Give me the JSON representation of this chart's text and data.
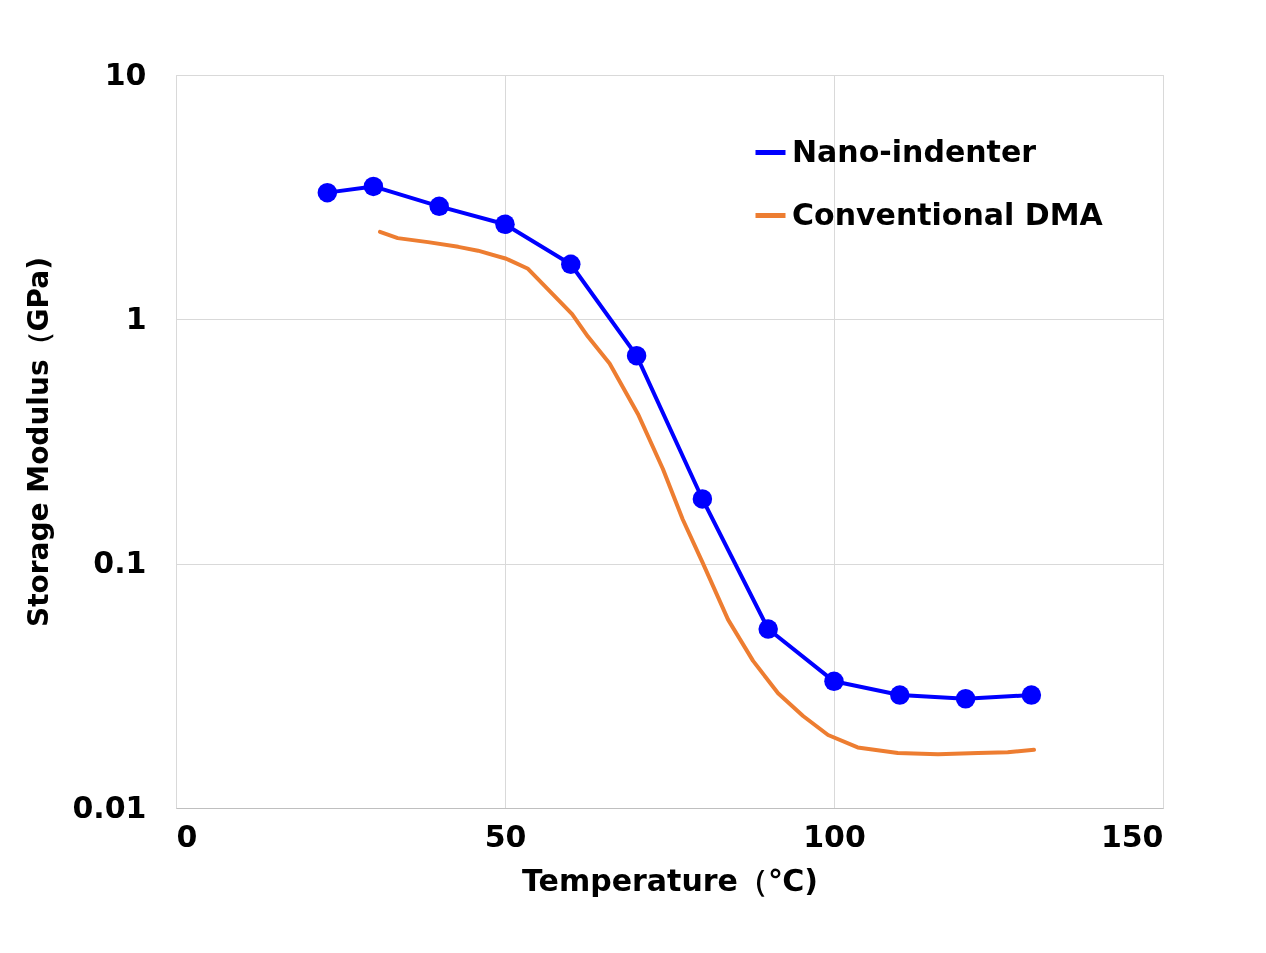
{
  "chart_data": {
    "type": "line",
    "xlabel": "Temperature（℃)",
    "ylabel": "Storage Modulus（GPa)",
    "log": "y",
    "xlim": [
      0,
      150
    ],
    "xticks": [
      0,
      50,
      100,
      150
    ],
    "ylim": [
      0.01,
      10
    ],
    "yticks": [
      0.01,
      0.1,
      1,
      10
    ],
    "grid": true,
    "legend": "top right",
    "line_style": "solid",
    "series": [
      {
        "name": "Nano-indenter",
        "color": "#0000ff",
        "marker": "circle",
        "x": [
          23,
          30,
          40,
          50,
          60,
          70,
          80,
          90,
          100,
          110,
          120,
          130
        ],
        "values": [
          3.3,
          3.5,
          2.9,
          2.45,
          1.68,
          0.71,
          0.184,
          0.054,
          0.033,
          0.029,
          0.028,
          0.029
        ]
      },
      {
        "name": "Conventional DMA",
        "color": "#ed7d31",
        "marker": "none",
        "x": [
          31,
          33.7,
          38.3,
          42.9,
          45.9,
          50.2,
          53.5,
          56.5,
          60.2,
          62.6,
          65.9,
          70.2,
          74,
          77,
          80.1,
          83.9,
          87.7,
          91.5,
          95.3,
          99.1,
          103.6,
          109.7,
          115.8,
          121.9,
          126.4,
          130.4
        ],
        "values": [
          2.28,
          2.15,
          2.07,
          1.98,
          1.91,
          1.77,
          1.61,
          1.33,
          1.05,
          0.85,
          0.66,
          0.41,
          0.244,
          0.152,
          0.1,
          0.059,
          0.04,
          0.0295,
          0.0238,
          0.0199,
          0.0177,
          0.0168,
          0.0166,
          0.0168,
          0.0169,
          0.0173
        ]
      }
    ]
  }
}
